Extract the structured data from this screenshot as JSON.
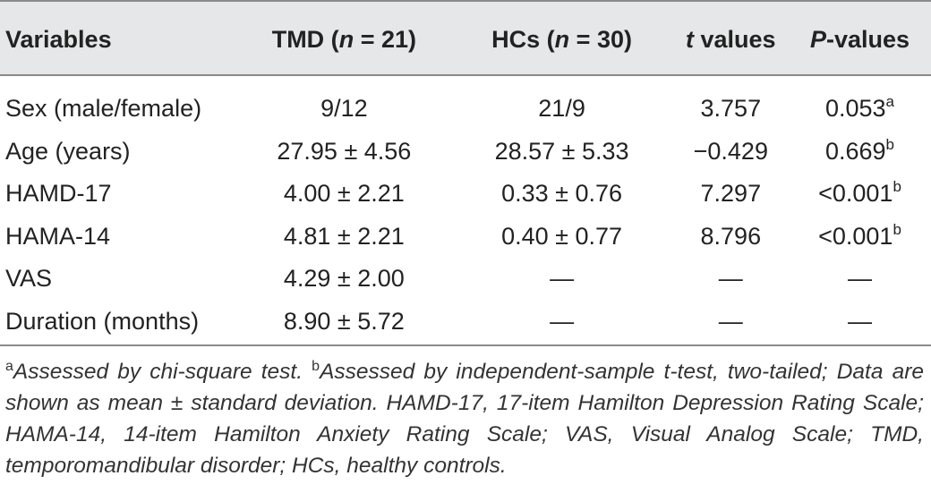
{
  "table": {
    "headers": {
      "variables": "Variables",
      "tmd_pre": "TMD (",
      "tmd_n": "n",
      "tmd_post": " =  21)",
      "hcs_pre": "HCs (",
      "hcs_n": "n",
      "hcs_post": " = 30)",
      "t_italic": "t",
      "t_post": " values",
      "p_italic": "P",
      "p_post": "-values"
    },
    "rows": [
      {
        "variable": "Sex (male/female)",
        "tmd": "9/12",
        "hcs": "21/9",
        "t": "3.757",
        "p": "0.053",
        "p_sup": "a"
      },
      {
        "variable": "Age (years)",
        "tmd": "27.95 ± 4.56",
        "hcs": "28.57 ± 5.33",
        "t": "−0.429",
        "p": "0.669",
        "p_sup": "b"
      },
      {
        "variable": "HAMD-17",
        "tmd": "4.00 ± 2.21",
        "hcs": "0.33 ± 0.76",
        "t": "7.297",
        "p": "<0.001",
        "p_sup": "b"
      },
      {
        "variable": "HAMA-14",
        "tmd": "4.81 ± 2.21",
        "hcs": "0.40 ± 0.77",
        "t": "8.796",
        "p": "<0.001",
        "p_sup": "b"
      },
      {
        "variable": "VAS",
        "tmd": "4.29 ± 2.00",
        "hcs": "—",
        "t": "—",
        "p": "—",
        "p_sup": ""
      },
      {
        "variable": "Duration (months)",
        "tmd": "8.90 ± 5.72",
        "hcs": "—",
        "t": "—",
        "p": "—",
        "p_sup": ""
      }
    ]
  },
  "footnote": {
    "a_mark": "a",
    "a_text": "Assessed by chi-square test. ",
    "b_mark": "b",
    "b_text": "Assessed by independent-sample t-test, two-tailed; Data are shown as mean ± standard deviation. HAMD-17, 17-item Hamilton Depression Rating Scale; HAMA-14, 14-item Hamilton Anxiety Rating Scale; VAS, Visual Analog Scale; TMD, temporomandibular disorder; HCs, healthy controls."
  }
}
